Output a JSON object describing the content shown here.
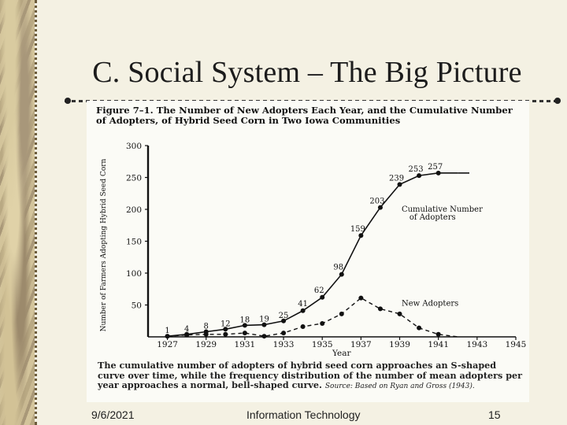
{
  "slide": {
    "title": "C. Social System – The Big Picture",
    "date": "9/6/2021",
    "footer": "Information Technology",
    "page": "15"
  },
  "figure": {
    "caption_head": "Figure 7–1. The Number of New Adopters Each Year, and the Cumulative Number of Adopters, of Hybrid Seed Corn in Two Iowa Communities",
    "caption_foot": "The cumulative number of adopters of hybrid seed corn approaches an S-shaped curve over time, while the frequency distribution of the number of mean adopters per year approaches a normal, bell-shaped curve.",
    "source": "Source: Based on Ryan and Gross (1943)."
  },
  "chart_data": {
    "type": "line",
    "xlabel": "Year",
    "ylabel": "Number of Farmers Adopting Hybrid Seed Corn",
    "xlim": [
      1926,
      1945
    ],
    "ylim": [
      0,
      300
    ],
    "xticks": [
      "1927",
      "1929",
      "1931",
      "1933",
      "1935",
      "1937",
      "1939",
      "1941",
      "1943",
      "1945"
    ],
    "yticks": [
      "50",
      "100",
      "150",
      "200",
      "250",
      "300"
    ],
    "series": [
      {
        "name": "Cumulative Number of Adopters",
        "style": "solid",
        "x": [
          1927,
          1928,
          1929,
          1930,
          1931,
          1932,
          1933,
          1934,
          1935,
          1936,
          1937,
          1938,
          1939,
          1940,
          1941,
          1942
        ],
        "y": [
          1,
          4,
          8,
          12,
          18,
          19,
          25,
          41,
          62,
          98,
          159,
          203,
          239,
          253,
          257,
          257
        ],
        "labels": [
          "1",
          "4",
          "8",
          "12",
          "18",
          "19",
          "25",
          "41",
          "62",
          "98",
          "159",
          "203",
          "239",
          "253",
          "257",
          ""
        ]
      },
      {
        "name": "New Adopters",
        "style": "dashed",
        "x": [
          1927,
          1928,
          1929,
          1930,
          1931,
          1932,
          1933,
          1934,
          1935,
          1936,
          1937,
          1938,
          1939,
          1940,
          1941,
          1942
        ],
        "y": [
          1,
          3,
          4,
          4,
          6,
          1,
          6,
          16,
          21,
          36,
          61,
          44,
          36,
          14,
          4,
          0
        ]
      }
    ],
    "label_cumulative": [
      "Cumulative Number",
      "of Adopters"
    ],
    "label_new": "New Adopters"
  }
}
